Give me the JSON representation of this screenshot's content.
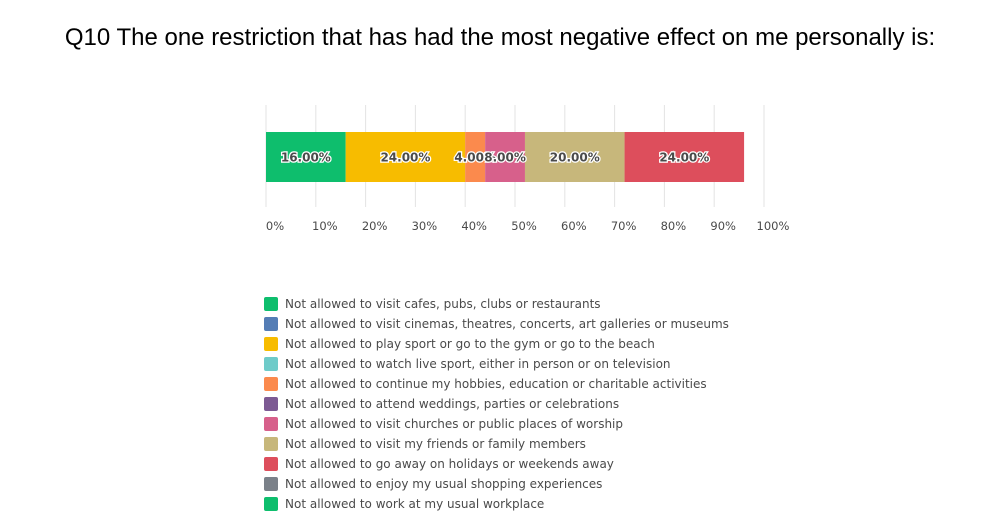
{
  "chart_data": {
    "type": "bar",
    "orientation": "horizontal-stacked",
    "title": "Q10 The one restriction that has had the most negative effect on me personally is:",
    "xlim": [
      0,
      100
    ],
    "ticks": [
      "0%",
      "10%",
      "20%",
      "30%",
      "40%",
      "50%",
      "60%",
      "70%",
      "80%",
      "90%",
      "100%"
    ],
    "grid": true,
    "legend_position": "bottom",
    "series": [
      {
        "name": "Not allowed to visit cafes, pubs, clubs or restaurants",
        "value": 16,
        "label": "16.00%",
        "color": "#0ebe6d"
      },
      {
        "name": "Not allowed to visit cinemas, theatres, concerts, art galleries or museums",
        "value": 0,
        "label": "",
        "color": "#547db5"
      },
      {
        "name": "Not allowed to play sport or go to the gym or go to the beach",
        "value": 24,
        "label": "24.00%",
        "color": "#f7bc00"
      },
      {
        "name": "Not allowed to watch live sport, either in person or on television",
        "value": 0,
        "label": "",
        "color": "#6ecbc9"
      },
      {
        "name": "Not allowed to continue my hobbies, education or charitable activities",
        "value": 4,
        "label": "4.00%",
        "color": "#fb8a4d"
      },
      {
        "name": "Not allowed to attend weddings, parties or celebrations",
        "value": 0,
        "label": "",
        "color": "#7d5a93"
      },
      {
        "name": "Not allowed to visit churches or public places of worship",
        "value": 8,
        "label": "8.00%",
        "color": "#d7608b"
      },
      {
        "name": "Not allowed to visit my friends or family members",
        "value": 20,
        "label": "20.00%",
        "color": "#c7b77b"
      },
      {
        "name": "Not allowed to go away on holidays or weekends away",
        "value": 24,
        "label": "24.00%",
        "color": "#dd4e5c"
      },
      {
        "name": "Not allowed to enjoy my usual shopping experiences",
        "value": 0,
        "label": "",
        "color": "#7b8189"
      },
      {
        "name": "Not allowed to work at my usual workplace",
        "value": 0,
        "label": "",
        "color": "#0ebe6d"
      }
    ]
  }
}
